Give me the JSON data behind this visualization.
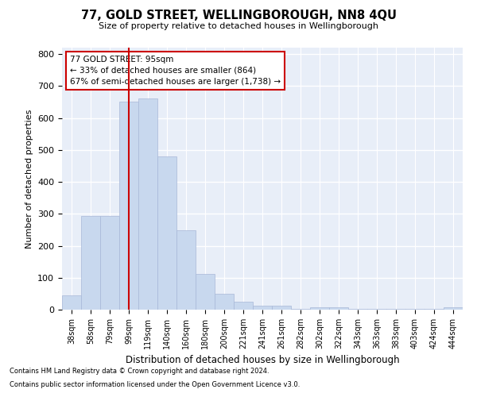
{
  "title": "77, GOLD STREET, WELLINGBOROUGH, NN8 4QU",
  "subtitle": "Size of property relative to detached houses in Wellingborough",
  "xlabel": "Distribution of detached houses by size in Wellingborough",
  "ylabel": "Number of detached properties",
  "bar_color": "#c8d8ee",
  "bar_edge_color": "#a8b8d8",
  "background_color": "#e8eef8",
  "grid_color": "#ffffff",
  "annotation_box_color": "#cc0000",
  "vline_color": "#cc0000",
  "categories": [
    "38sqm",
    "58sqm",
    "79sqm",
    "99sqm",
    "119sqm",
    "140sqm",
    "160sqm",
    "180sqm",
    "200sqm",
    "221sqm",
    "241sqm",
    "261sqm",
    "282sqm",
    "302sqm",
    "322sqm",
    "343sqm",
    "363sqm",
    "383sqm",
    "403sqm",
    "424sqm",
    "444sqm"
  ],
  "values": [
    45,
    293,
    293,
    650,
    660,
    480,
    248,
    113,
    50,
    25,
    13,
    13,
    2,
    8,
    8,
    2,
    2,
    2,
    2,
    2,
    8
  ],
  "ylim": [
    0,
    820
  ],
  "yticks": [
    0,
    100,
    200,
    300,
    400,
    500,
    600,
    700,
    800
  ],
  "annotation_line1": "77 GOLD STREET: 95sqm",
  "annotation_line2": "← 33% of detached houses are smaller (864)",
  "annotation_line3": "67% of semi-detached houses are larger (1,738) →",
  "footnote1": "Contains HM Land Registry data © Crown copyright and database right 2024.",
  "footnote2": "Contains public sector information licensed under the Open Government Licence v3.0.",
  "vline_x_index": 3.5
}
